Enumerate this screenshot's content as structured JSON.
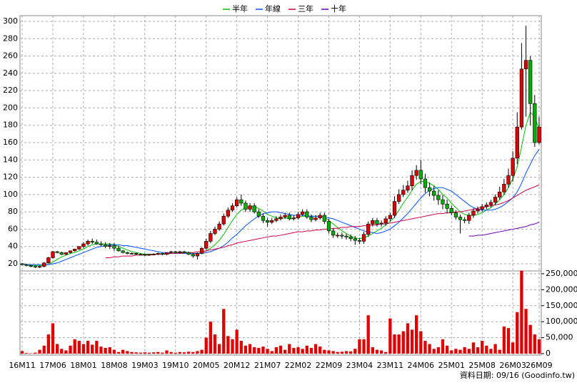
{
  "chart_data": {
    "type": "candlestick",
    "footer": "資料日期: 09/16 (Goodinfo.tw)",
    "categories": [
      "16M11",
      null,
      null,
      null,
      null,
      null,
      null,
      "17M06",
      null,
      null,
      null,
      null,
      null,
      null,
      "18M01",
      null,
      null,
      null,
      null,
      null,
      null,
      "18M08",
      null,
      null,
      null,
      null,
      null,
      null,
      "19M03",
      null,
      null,
      null,
      null,
      null,
      null,
      "19M10",
      null,
      null,
      null,
      null,
      null,
      null,
      "20M05",
      null,
      null,
      null,
      null,
      null,
      null,
      "20M12",
      null,
      null,
      null,
      null,
      null,
      null,
      "21M07",
      null,
      null,
      null,
      null,
      null,
      null,
      "22M02",
      null,
      null,
      null,
      null,
      null,
      null,
      "22M09",
      null,
      null,
      null,
      null,
      null,
      null,
      "23M04",
      null,
      null,
      null,
      null,
      null,
      null,
      "23M11",
      null,
      null,
      null,
      null,
      null,
      null,
      "24M06",
      null,
      null,
      null,
      null,
      null,
      null,
      "25M01",
      null,
      null,
      null,
      null,
      null,
      null,
      "25M08",
      null,
      null,
      null,
      null,
      null,
      null,
      "26M03",
      null,
      null,
      null,
      null,
      null,
      "26M09"
    ],
    "ylim": [
      20,
      300
    ],
    "yticks": [
      20,
      40,
      60,
      80,
      100,
      120,
      140,
      160,
      180,
      200,
      220,
      240,
      260,
      280,
      300
    ],
    "grid": true,
    "up_color": "#e00000",
    "down_color": "#00b000",
    "open": [
      20,
      19,
      18,
      17,
      16,
      17,
      21,
      27,
      34,
      33,
      31,
      33,
      35,
      37,
      40,
      43,
      46,
      45,
      43,
      42,
      40,
      41,
      38,
      35,
      33,
      32,
      32,
      31,
      31,
      30,
      31,
      31,
      32,
      31,
      33,
      34,
      33,
      34,
      33,
      31,
      29,
      32,
      38,
      46,
      55,
      60,
      66,
      75,
      82,
      87,
      94,
      90,
      83,
      87,
      80,
      75,
      70,
      68,
      70,
      72,
      74,
      76,
      72,
      73,
      77,
      80,
      74,
      71,
      73,
      76,
      69,
      58,
      53,
      53,
      52,
      51,
      49,
      47,
      46,
      54,
      66,
      70,
      66,
      67,
      72,
      76,
      92,
      100,
      105,
      110,
      122,
      128,
      118,
      108,
      104,
      99,
      94,
      89,
      84,
      79,
      74,
      71,
      70,
      76,
      81,
      83,
      86,
      88,
      91,
      97,
      103,
      112,
      122,
      142,
      178,
      245,
      255,
      205,
      160
    ],
    "high": [
      21,
      20,
      19,
      18,
      18,
      22,
      28,
      35,
      35,
      34,
      32,
      34,
      36,
      38,
      45,
      48,
      49,
      48,
      46,
      45,
      44,
      44,
      41,
      36,
      34,
      33,
      33,
      32,
      32,
      31,
      32,
      33,
      33,
      32,
      35,
      35,
      35,
      35,
      34,
      32,
      33,
      39,
      49,
      58,
      63,
      69,
      78,
      85,
      90,
      97,
      100,
      93,
      90,
      90,
      83,
      78,
      73,
      73,
      75,
      77,
      79,
      79,
      76,
      80,
      83,
      83,
      77,
      76,
      79,
      79,
      72,
      61,
      56,
      56,
      55,
      54,
      52,
      50,
      57,
      69,
      73,
      73,
      70,
      75,
      79,
      98,
      106,
      111,
      116,
      128,
      134,
      140,
      124,
      114,
      110,
      105,
      99,
      94,
      87,
      82,
      77,
      74,
      79,
      84,
      86,
      89,
      91,
      94,
      100,
      109,
      118,
      130,
      150,
      195,
      275,
      295,
      260,
      215,
      190
    ],
    "low": [
      18,
      17,
      16,
      15,
      15,
      16,
      20,
      26,
      32,
      30,
      30,
      32,
      34,
      36,
      38,
      41,
      43,
      42,
      40,
      38,
      37,
      35,
      34,
      32,
      31,
      31,
      30,
      30,
      29,
      29,
      30,
      30,
      30,
      30,
      32,
      32,
      32,
      32,
      30,
      27,
      25,
      31,
      36,
      44,
      53,
      58,
      64,
      73,
      80,
      85,
      87,
      80,
      80,
      78,
      73,
      67,
      63,
      66,
      68,
      70,
      72,
      70,
      70,
      71,
      75,
      72,
      68,
      69,
      71,
      66,
      55,
      50,
      50,
      49,
      48,
      46,
      42,
      43,
      43,
      51,
      63,
      63,
      63,
      64,
      69,
      73,
      89,
      97,
      102,
      105,
      117,
      112,
      102,
      98,
      93,
      88,
      83,
      78,
      76,
      71,
      55,
      67,
      66,
      73,
      78,
      80,
      83,
      85,
      88,
      94,
      100,
      108,
      115,
      135,
      175,
      190,
      180,
      155,
      158
    ],
    "close": [
      19,
      18,
      17,
      16,
      17,
      21,
      27,
      34,
      33,
      31,
      33,
      35,
      37,
      40,
      43,
      46,
      45,
      43,
      42,
      40,
      41,
      38,
      35,
      33,
      32,
      32,
      31,
      31,
      30,
      31,
      31,
      32,
      31,
      33,
      34,
      33,
      34,
      33,
      31,
      29,
      32,
      38,
      46,
      55,
      60,
      66,
      75,
      82,
      87,
      94,
      90,
      83,
      87,
      80,
      75,
      70,
      68,
      70,
      72,
      74,
      76,
      72,
      73,
      77,
      80,
      74,
      71,
      73,
      76,
      69,
      58,
      53,
      53,
      52,
      51,
      49,
      47,
      46,
      54,
      66,
      70,
      66,
      67,
      72,
      76,
      92,
      100,
      105,
      110,
      122,
      128,
      118,
      108,
      104,
      99,
      94,
      89,
      84,
      79,
      74,
      71,
      70,
      76,
      81,
      83,
      86,
      88,
      91,
      97,
      103,
      112,
      122,
      142,
      178,
      245,
      255,
      205,
      160,
      178
    ],
    "volume": {
      "color": "#e00000",
      "ylim": [
        0,
        260000
      ],
      "yticks": [
        0,
        {
          "value": 50000,
          "label": "50,000"
        },
        {
          "value": 100000,
          "label": "100,000"
        },
        {
          "value": 150000,
          "label": "150,000"
        },
        {
          "value": 200000,
          "label": "200,000"
        },
        {
          "value": 250000,
          "label": "250,000"
        }
      ],
      "values": [
        8000,
        2000,
        1000,
        3000,
        12000,
        25000,
        60000,
        95000,
        30000,
        15000,
        10000,
        25000,
        45000,
        40000,
        30000,
        40000,
        28000,
        40000,
        22000,
        18000,
        20000,
        12000,
        5000,
        12000,
        8000,
        5000,
        4000,
        3000,
        4000,
        3000,
        4000,
        5000,
        3000,
        10000,
        5000,
        3000,
        5000,
        4000,
        6000,
        5000,
        8000,
        12000,
        50000,
        100000,
        60000,
        30000,
        140000,
        55000,
        45000,
        75000,
        40000,
        25000,
        30000,
        20000,
        18000,
        22000,
        15000,
        8000,
        20000,
        25000,
        12000,
        30000,
        18000,
        20000,
        15000,
        25000,
        18000,
        30000,
        22000,
        12000,
        10000,
        8000,
        5000,
        6000,
        8000,
        7000,
        15000,
        45000,
        45000,
        120000,
        20000,
        12000,
        10000,
        5000,
        110000,
        60000,
        60000,
        70000,
        95000,
        75000,
        120000,
        70000,
        40000,
        30000,
        15000,
        20000,
        45000,
        25000,
        10000,
        15000,
        12000,
        20000,
        15000,
        35000,
        20000,
        40000,
        25000,
        15000,
        30000,
        12000,
        85000,
        80000,
        35000,
        130000,
        260000,
        140000,
        90000,
        60000,
        45000
      ]
    },
    "series": [
      {
        "name": "半年",
        "color": "#00c000",
        "values": [
          20,
          19,
          18,
          18,
          18,
          18,
          19,
          22,
          25,
          28,
          30,
          32,
          33,
          35,
          37,
          40,
          42,
          43,
          43,
          43,
          43,
          42,
          40,
          38,
          36,
          34,
          33,
          32,
          31,
          31,
          31,
          31,
          31,
          32,
          32,
          32,
          33,
          33,
          33,
          32,
          32,
          33,
          35,
          38,
          42,
          47,
          54,
          62,
          70,
          77,
          82,
          85,
          86,
          86,
          84,
          81,
          77,
          75,
          73,
          72,
          73,
          72,
          72,
          74,
          75,
          75,
          75,
          75,
          75,
          74,
          70,
          66,
          62,
          58,
          55,
          52,
          50,
          49,
          50,
          52,
          55,
          58,
          61,
          65,
          69,
          74,
          82,
          90,
          97,
          105,
          112,
          115,
          115,
          113,
          110,
          106,
          100,
          96,
          90,
          85,
          80,
          77,
          76,
          76,
          77,
          79,
          82,
          85,
          89,
          94,
          100,
          108,
          118,
          132,
          155,
          180,
          195,
          190,
          175
        ]
      },
      {
        "name": "年線",
        "color": "#0050ff",
        "values": [
          20,
          19,
          19,
          19,
          19,
          19,
          19,
          20,
          21,
          23,
          25,
          27,
          29,
          31,
          33,
          35,
          37,
          39,
          40,
          41,
          42,
          42,
          42,
          41,
          41,
          40,
          39,
          38,
          37,
          36,
          35,
          34,
          33,
          33,
          32,
          32,
          32,
          32,
          32,
          32,
          32,
          32,
          33,
          34,
          36,
          38,
          41,
          45,
          50,
          54,
          59,
          64,
          68,
          72,
          75,
          78,
          79,
          80,
          80,
          79,
          78,
          77,
          76,
          76,
          76,
          75,
          75,
          75,
          75,
          74,
          73,
          72,
          70,
          68,
          66,
          64,
          62,
          60,
          58,
          57,
          56,
          55,
          56,
          58,
          60,
          64,
          68,
          73,
          78,
          84,
          90,
          96,
          101,
          105,
          107,
          108,
          108,
          106,
          104,
          100,
          96,
          92,
          88,
          85,
          83,
          82,
          82,
          82,
          83,
          85,
          88,
          92,
          96,
          103,
          113,
          125,
          135,
          145,
          152
        ]
      },
      {
        "name": "三年",
        "color": "#d0004a",
        "values": [
          null,
          null,
          null,
          null,
          null,
          null,
          null,
          null,
          null,
          null,
          null,
          null,
          null,
          null,
          null,
          null,
          null,
          null,
          null,
          27,
          27,
          28,
          28,
          29,
          29,
          29,
          30,
          30,
          30,
          30,
          31,
          31,
          31,
          31,
          32,
          32,
          32,
          33,
          33,
          33,
          34,
          34,
          35,
          36,
          37,
          38,
          39,
          41,
          42,
          44,
          45,
          46,
          47,
          48,
          49,
          50,
          51,
          52,
          52,
          53,
          54,
          55,
          56,
          57,
          57,
          58,
          58,
          59,
          59,
          60,
          60,
          61,
          61,
          62,
          62,
          63,
          63,
          63,
          64,
          64,
          65,
          65,
          66,
          66,
          67,
          68,
          69,
          70,
          71,
          72,
          73,
          74,
          75,
          76,
          77,
          78,
          78,
          79,
          79,
          80,
          80,
          81,
          82,
          83,
          84,
          85,
          86,
          87,
          88,
          89,
          91,
          93,
          96,
          99,
          102,
          105,
          107,
          109,
          111
        ]
      },
      {
        "name": "十年",
        "color": "#6a00b0",
        "values": [
          null,
          null,
          null,
          null,
          null,
          null,
          null,
          null,
          null,
          null,
          null,
          null,
          null,
          null,
          null,
          null,
          null,
          null,
          null,
          null,
          null,
          null,
          null,
          null,
          null,
          null,
          null,
          null,
          null,
          null,
          null,
          null,
          null,
          null,
          null,
          null,
          null,
          null,
          null,
          null,
          null,
          null,
          null,
          null,
          null,
          null,
          null,
          null,
          null,
          null,
          null,
          null,
          null,
          null,
          null,
          null,
          null,
          null,
          null,
          null,
          null,
          null,
          null,
          null,
          null,
          null,
          null,
          null,
          null,
          null,
          null,
          null,
          null,
          null,
          null,
          null,
          null,
          null,
          null,
          null,
          null,
          null,
          null,
          null,
          null,
          null,
          null,
          null,
          null,
          null,
          null,
          null,
          null,
          null,
          null,
          null,
          null,
          null,
          null,
          null,
          null,
          null,
          52,
          52,
          53,
          53,
          54,
          55,
          56,
          57,
          58,
          59,
          60,
          61,
          62,
          63,
          65,
          66,
          68
        ]
      }
    ]
  }
}
